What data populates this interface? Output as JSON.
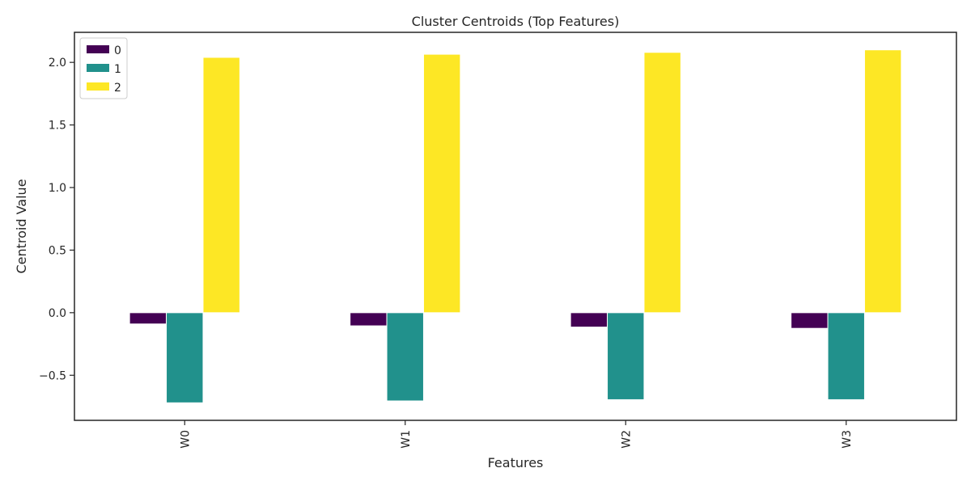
{
  "chart_data": {
    "type": "bar",
    "title": "Cluster Centroids (Top Features)",
    "xlabel": "Features",
    "ylabel": "Centroid Value",
    "categories": [
      "W0",
      "W1",
      "W2",
      "W3"
    ],
    "series": [
      {
        "name": "0",
        "color": "#440154",
        "values": [
          -0.09,
          -0.105,
          -0.115,
          -0.125
        ]
      },
      {
        "name": "1",
        "color": "#21918c",
        "values": [
          -0.72,
          -0.705,
          -0.695,
          -0.695
        ]
      },
      {
        "name": "2",
        "color": "#fde725",
        "values": [
          2.04,
          2.065,
          2.08,
          2.1
        ]
      }
    ],
    "ylim": [
      -0.86,
      2.24
    ],
    "yticks": [
      -0.5,
      0.0,
      0.5,
      1.0,
      1.5,
      2.0
    ],
    "ytick_labels": [
      "−0.5",
      "0.0",
      "0.5",
      "1.0",
      "1.5",
      "2.0"
    ],
    "grid": false,
    "legend_position": "top-left"
  }
}
